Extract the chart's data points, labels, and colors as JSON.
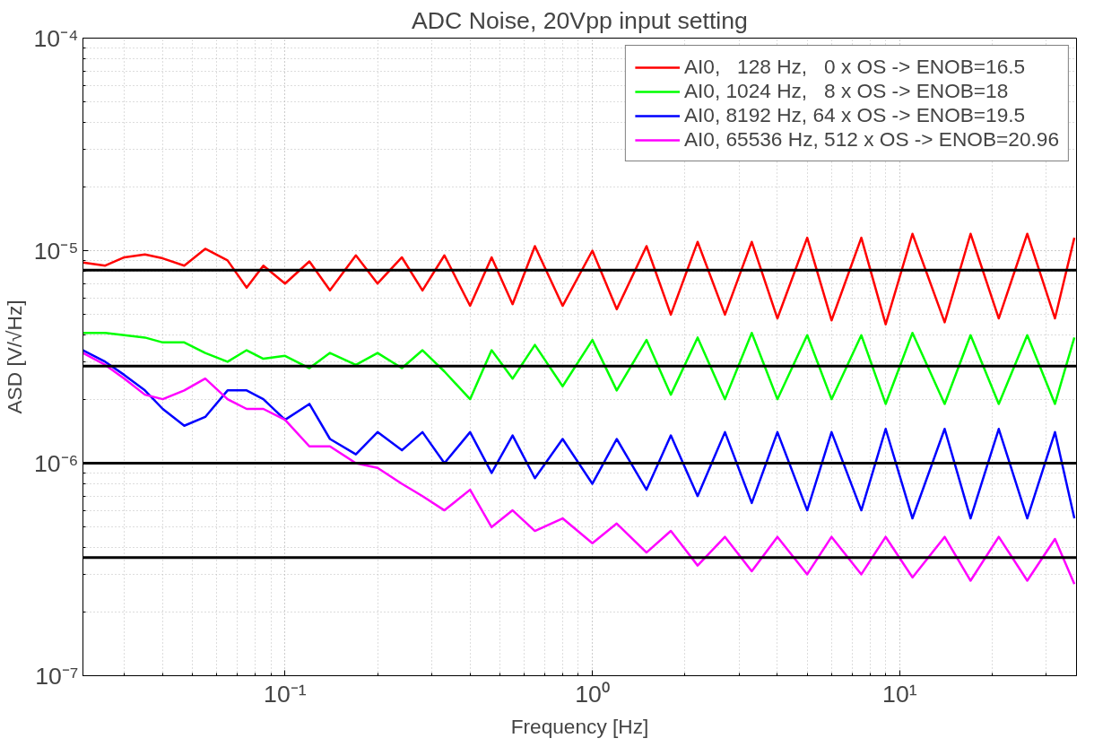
{
  "chart_data": {
    "type": "line",
    "title": "ADC Noise, 20Vpp input setting",
    "xlabel": "Frequency [Hz]",
    "ylabel": "ASD [V/√Hz]",
    "log": "xy",
    "grid": true,
    "legend": "top right",
    "line_style": "solid",
    "marker": "none",
    "xlim": [
      0.022,
      37.6
    ],
    "ylim": [
      1e-07,
      0.0001
    ],
    "xticks": [
      {
        "value": 0.1,
        "label": "10⁻¹"
      },
      {
        "value": 1,
        "label": "10⁰"
      },
      {
        "value": 10,
        "label": "10¹"
      }
    ],
    "yticks": [
      {
        "value": 1e-07,
        "label": "10⁻⁷"
      },
      {
        "value": 1e-06,
        "label": "10⁻⁶"
      },
      {
        "value": 1e-05,
        "label": "10⁻⁵"
      },
      {
        "value": 0.0001,
        "label": "10⁻⁴"
      }
    ],
    "x": [
      0.022,
      0.026,
      0.03,
      0.035,
      0.04,
      0.047,
      0.055,
      0.065,
      0.075,
      0.085,
      0.1,
      0.12,
      0.14,
      0.17,
      0.2,
      0.24,
      0.28,
      0.33,
      0.4,
      0.47,
      0.55,
      0.65,
      0.8,
      1.0,
      1.2,
      1.5,
      1.8,
      2.2,
      2.7,
      3.3,
      4,
      5,
      6,
      7.5,
      9,
      11,
      14,
      17,
      21,
      26,
      32,
      37
    ],
    "series": [
      {
        "name": "AI0,   128 Hz,   0 x OS -> ENOB=16.5",
        "color": "#ff0000",
        "values": [
          8.8e-06,
          8.5e-06,
          9.3e-06,
          9.6e-06,
          9.2e-06,
          8.5e-06,
          1.02e-05,
          9e-06,
          6.7e-06,
          8.5e-06,
          7e-06,
          8.9e-06,
          6.5e-06,
          9.5e-06,
          7e-06,
          9.3e-06,
          6.5e-06,
          9.5e-06,
          5.5e-06,
          9.3e-06,
          5.6e-06,
          1.05e-05,
          5.5e-06,
          1e-05,
          5.3e-06,
          1.05e-05,
          5e-06,
          1.1e-05,
          5e-06,
          1.1e-05,
          4.8e-06,
          1.15e-05,
          4.7e-06,
          1.15e-05,
          4.5e-06,
          1.2e-05,
          4.6e-06,
          1.2e-05,
          4.8e-06,
          1.2e-05,
          4.8e-06,
          1.15e-05
        ]
      },
      {
        "name": "AI0, 1024 Hz,   8 x OS -> ENOB=18",
        "color": "#00ff00",
        "values": [
          4.1e-06,
          4.1e-06,
          4e-06,
          3.9e-06,
          3.7e-06,
          3.7e-06,
          3.3e-06,
          3e-06,
          3.4e-06,
          3.1e-06,
          3.2e-06,
          2.8e-06,
          3.3e-06,
          2.9e-06,
          3.3e-06,
          2.8e-06,
          3.4e-06,
          2.7e-06,
          2e-06,
          3.4e-06,
          2.5e-06,
          3.6e-06,
          2.3e-06,
          3.8e-06,
          2.2e-06,
          3.8e-06,
          2.1e-06,
          3.9e-06,
          2e-06,
          4.1e-06,
          2e-06,
          4e-06,
          2e-06,
          4e-06,
          1.9e-06,
          4.1e-06,
          1.9e-06,
          4e-06,
          1.9e-06,
          4e-06,
          1.9e-06,
          3.9e-06
        ]
      },
      {
        "name": "AI0, 8192 Hz, 64 x OS -> ENOB=19.5",
        "color": "#0000ff",
        "values": [
          3.4e-06,
          3e-06,
          2.6e-06,
          2.2e-06,
          1.8e-06,
          1.5e-06,
          1.65e-06,
          2.2e-06,
          2.2e-06,
          2e-06,
          1.6e-06,
          1.9e-06,
          1.3e-06,
          1.1e-06,
          1.4e-06,
          1.15e-06,
          1.4e-06,
          1e-06,
          1.4e-06,
          9e-07,
          1.35e-06,
          8.5e-07,
          1.3e-06,
          8e-07,
          1.3e-06,
          7.5e-07,
          1.35e-06,
          7e-07,
          1.4e-06,
          6.5e-07,
          1.4e-06,
          6e-07,
          1.4e-06,
          6e-07,
          1.45e-06,
          5.5e-07,
          1.45e-06,
          5.5e-07,
          1.45e-06,
          5.5e-07,
          1.4e-06,
          5.5e-07
        ]
      },
      {
        "name": "AI0, 65536 Hz, 512 x OS -> ENOB=20.96",
        "color": "#ff00ff",
        "values": [
          3.3e-06,
          2.9e-06,
          2.5e-06,
          2.1e-06,
          2e-06,
          2.2e-06,
          2.5e-06,
          2e-06,
          1.8e-06,
          1.8e-06,
          1.6e-06,
          1.2e-06,
          1.2e-06,
          1e-06,
          9.5e-07,
          8e-07,
          7e-07,
          6e-07,
          7.5e-07,
          5e-07,
          6e-07,
          4.8e-07,
          5.5e-07,
          4.2e-07,
          5.2e-07,
          3.8e-07,
          4.8e-07,
          3.3e-07,
          4.5e-07,
          3.1e-07,
          4.5e-07,
          3e-07,
          4.5e-07,
          3e-07,
          4.5e-07,
          2.9e-07,
          4.5e-07,
          2.8e-07,
          4.5e-07,
          2.8e-07,
          4.4e-07,
          2.7e-07
        ]
      }
    ],
    "ref_lines": [
      {
        "axis": "y",
        "value": 8.1e-06,
        "color": "#000000"
      },
      {
        "axis": "y",
        "value": 2.86e-06,
        "color": "#000000"
      },
      {
        "axis": "y",
        "value": 1e-06,
        "color": "#000000"
      },
      {
        "axis": "y",
        "value": 3.6e-07,
        "color": "#000000"
      }
    ]
  }
}
